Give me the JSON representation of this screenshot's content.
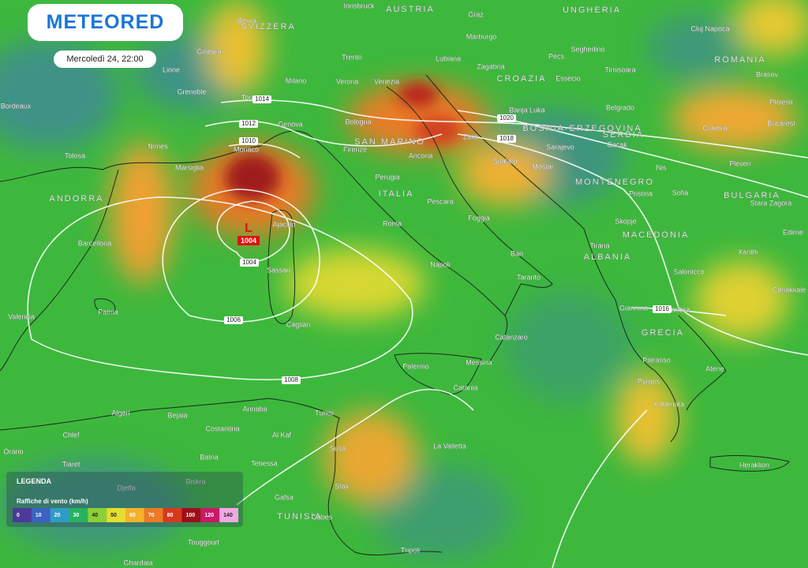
{
  "header": {
    "logo": "METEORED",
    "date": "Mercoledì 24, 22:00"
  },
  "map": {
    "countries": [
      "SVIZZERA",
      "AUSTRIA",
      "UNGHERIA",
      "ROMANIA",
      "CROAZIA",
      "BOSNIA-ERZEGOVINA",
      "SERBIA",
      "MONTENEGRO",
      "MACEDONIA",
      "ALBANIA",
      "BULGARIA",
      "GRECIA",
      "ITALIA",
      "SAN MARINO",
      "ANDORRA",
      "TUNISIA"
    ],
    "cities": [
      "Berna",
      "Ginevra",
      "Lione",
      "Grenoble",
      "Torino",
      "Milano",
      "Trento",
      "Verona",
      "Venezia",
      "Innsbruck",
      "Graz",
      "Marburgo",
      "Lubiana",
      "Zagabria",
      "Pécs",
      "Seghedino",
      "Timisoara",
      "Essecio",
      "Cluj Napoca",
      "Brasov",
      "Ploiesti",
      "Bucarest",
      "Craiova",
      "Banja Luka",
      "Belgrado",
      "Bordeaux",
      "Tolosa",
      "Nimes",
      "Marsiglia",
      "Monaco",
      "Genova",
      "Bologna",
      "Firenze",
      "Ancona",
      "Perugia",
      "Pescara",
      "Roma",
      "Napoli",
      "Foggia",
      "Bari",
      "Taranto",
      "Zara",
      "Spalato",
      "Sarajevo",
      "Mostar",
      "Cacak",
      "Nis",
      "Sofia",
      "Pristina",
      "Skopje",
      "Tirana",
      "Pleven",
      "Stara Zagora",
      "Edirne",
      "Xanthi",
      "Salonicco",
      "Giannina",
      "Larissa",
      "Patrasso",
      "Pyrgos",
      "Atene",
      "Kalamata",
      "Heraklion",
      "Canakkale",
      "Ajaccio",
      "Sassari",
      "Cagliari",
      "Palermo",
      "Messina",
      "Catania",
      "Catanzaro",
      "Barcellona",
      "Palma",
      "Valencia",
      "Algeri",
      "Bejaia",
      "Annaba",
      "Tunisi",
      "Costantina",
      "Al Kaf",
      "Chlef",
      "Orano",
      "Tiaret",
      "Batna",
      "Tebessa",
      "Biskra",
      "Djelfa",
      "Gafsa",
      "Susa",
      "Sfax",
      "Gabes",
      "La Valletta",
      "Tripoli",
      "Touggourt",
      "Ghardaia"
    ],
    "isobars": [
      1014,
      1012,
      1010,
      1020,
      1018,
      1016,
      1004,
      1006,
      1008
    ],
    "low": {
      "symbol": "L",
      "pressure": 1004
    }
  },
  "legend": {
    "title": "LEGENDA",
    "subtitle": "Raffiche di vento (km/h)",
    "scale": [
      0,
      10,
      20,
      30,
      40,
      50,
      60,
      70,
      80,
      100,
      120,
      140
    ],
    "colors": [
      "#4b3a9a",
      "#3a62c0",
      "#2f9cc8",
      "#27b35e",
      "#8ccf36",
      "#e5dd2e",
      "#f3b22c",
      "#ec7a26",
      "#d63a1d",
      "#9e0f1a",
      "#c91a6a",
      "#f2a8e6"
    ]
  }
}
